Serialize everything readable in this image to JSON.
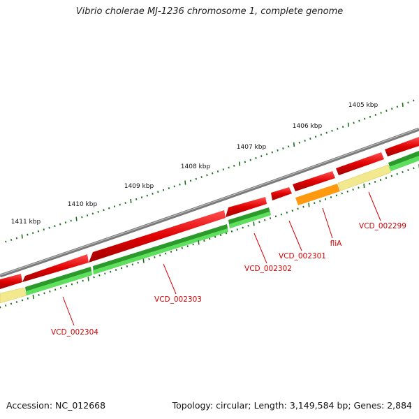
{
  "title": "Vibrio cholerae MJ-1236 chromosome 1, complete genome",
  "accession": "Accession: NC_012668",
  "genome_info": "Topology: circular; Length: 3,149,584 bp; Genes: 2,884",
  "ruler": {
    "unit_labels": [
      {
        "text": "1405 kbp",
        "kbp": 1405
      },
      {
        "text": "1406 kbp",
        "kbp": 1406
      },
      {
        "text": "1407 kbp",
        "kbp": 1407
      },
      {
        "text": "1408 kbp",
        "kbp": 1408
      },
      {
        "text": "1409 kbp",
        "kbp": 1409
      },
      {
        "text": "1410 kbp",
        "kbp": 1410
      },
      {
        "text": "1411 kbp",
        "kbp": 1411
      }
    ]
  },
  "genes": [
    {
      "label": "VCD_002299",
      "kind": "cds"
    },
    {
      "label": "fliA",
      "kind": "cds"
    },
    {
      "label": "VCD_002301",
      "kind": "cds"
    },
    {
      "label": "VCD_002302",
      "kind": "cds"
    },
    {
      "label": "VCD_002303",
      "kind": "cds"
    },
    {
      "label": "VCD_002304",
      "kind": "cds"
    }
  ],
  "colors": {
    "backbone": "#808080",
    "forward_gene": "#e00000",
    "reverse_gene": "#1f8a1f",
    "reverse_gene_light": "#55dd44",
    "orange_gene": "#ff9900",
    "pale_gene": "#f2e88e",
    "tick": "#1a6e1a",
    "label": "#d40000"
  }
}
